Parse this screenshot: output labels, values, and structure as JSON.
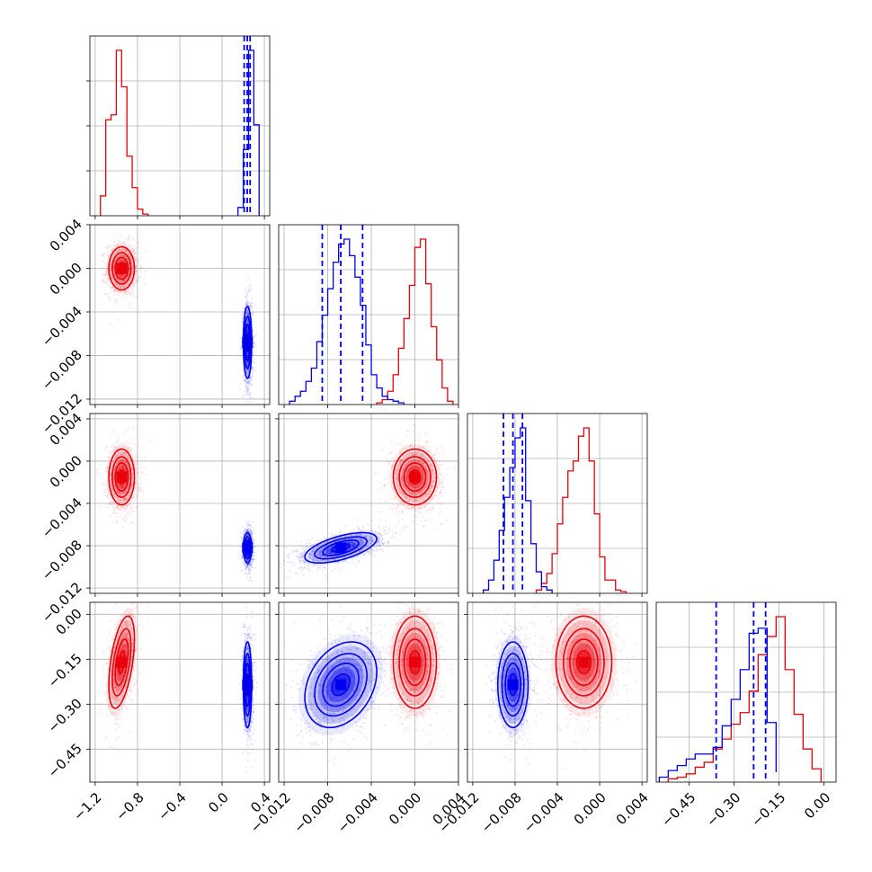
{
  "chart_data": {
    "type": "corner",
    "colors": {
      "red": "#e8000b",
      "blue": "#0000ee"
    },
    "parameters": [
      {
        "range": [
          -1.25,
          0.45
        ],
        "ticks": [
          -1.2,
          -0.8,
          -0.4,
          0.0,
          0.4
        ],
        "tick_labels": [
          "−1.2",
          "−0.8",
          "−0.4",
          "0.0",
          "0.4"
        ]
      },
      {
        "range": [
          -0.0125,
          0.004
        ],
        "ticks": [
          -0.012,
          -0.008,
          -0.004,
          0.0,
          0.004
        ],
        "tick_labels": [
          "−0.012",
          "−0.008",
          "−0.004",
          "0.000",
          "0.004"
        ]
      },
      {
        "range": [
          -0.0125,
          0.0045
        ],
        "ticks": [
          -0.012,
          -0.008,
          -0.004,
          0.0,
          0.004
        ],
        "tick_labels": [
          "−0.012",
          "−0.008",
          "−0.004",
          "0.000",
          "0.004"
        ]
      },
      {
        "range": [
          -0.56,
          0.04
        ],
        "ticks": [
          -0.45,
          -0.3,
          -0.15,
          0.0
        ],
        "tick_labels": [
          "−0.45",
          "−0.30",
          "−0.15",
          "0.00"
        ]
      }
    ],
    "red": {
      "means": [
        -0.95,
        0.0,
        -0.0015,
        -0.16
      ],
      "sds": [
        0.055,
        0.0009,
        0.0012,
        0.07
      ],
      "corr": {
        "0-3": 0.5
      },
      "hist_bins": [
        {
          "edges": [
            -1.15,
            -1.1,
            -1.05,
            -1.0,
            -0.95,
            -0.9,
            -0.85,
            -0.8,
            -0.75,
            -0.7
          ],
          "counts": [
            0.12,
            0.58,
            0.61,
            1.0,
            0.78,
            0.36,
            0.17,
            0.04,
            0.01
          ]
        },
        {
          "edges": [
            -0.0035,
            -0.003,
            -0.0025,
            -0.002,
            -0.0015,
            -0.001,
            -0.0005,
            0.0,
            0.0005,
            0.001,
            0.0015,
            0.002,
            0.0025,
            0.003,
            0.0035
          ],
          "counts": [
            0.01,
            0.03,
            0.08,
            0.18,
            0.34,
            0.52,
            0.72,
            0.95,
            1.0,
            0.73,
            0.47,
            0.27,
            0.1,
            0.02
          ]
        },
        {
          "edges": [
            -0.006,
            -0.0055,
            -0.005,
            -0.0045,
            -0.004,
            -0.0035,
            -0.003,
            -0.0025,
            -0.002,
            -0.0015,
            -0.001,
            -0.0005,
            0.0,
            0.0005,
            0.001,
            0.0015,
            0.002,
            0.0025
          ],
          "counts": [
            0.02,
            0.06,
            0.12,
            0.24,
            0.42,
            0.58,
            0.74,
            0.8,
            0.95,
            1.0,
            0.8,
            0.48,
            0.22,
            0.08,
            0.08,
            0.02,
            0.01
          ]
        },
        {
          "edges": [
            -0.52,
            -0.49,
            -0.46,
            -0.43,
            -0.4,
            -0.37,
            -0.34,
            -0.31,
            -0.28,
            -0.25,
            -0.22,
            -0.19,
            -0.16,
            -0.13,
            -0.1,
            -0.07,
            -0.04,
            -0.01
          ],
          "counts": [
            0.02,
            0.03,
            0.05,
            0.09,
            0.12,
            0.2,
            0.26,
            0.35,
            0.42,
            0.55,
            0.77,
            0.88,
            1.0,
            0.68,
            0.41,
            0.2,
            0.08
          ]
        }
      ]
    },
    "blue": {
      "means": [
        0.24,
        -0.0068,
        -0.0082,
        -0.235
      ],
      "sds": [
        0.018,
        0.0015,
        0.00065,
        0.065
      ],
      "corr": {
        "1-2": 0.6,
        "1-3": 0.3
      },
      "hist_bins": [
        {
          "edges": [
            0.15,
            0.2,
            0.25,
            0.3,
            0.35
          ],
          "counts": [
            0.05,
            0.4,
            1.0,
            0.55
          ]
        },
        {
          "edges": [
            -0.0115,
            -0.011,
            -0.0105,
            -0.01,
            -0.0095,
            -0.009,
            -0.0085,
            -0.008,
            -0.0075,
            -0.007,
            -0.0065,
            -0.006,
            -0.0055,
            -0.005,
            -0.0045,
            -0.004,
            -0.0035,
            -0.003,
            -0.0025,
            -0.002,
            -0.0015,
            -0.001
          ],
          "counts": [
            0.02,
            0.05,
            0.08,
            0.14,
            0.22,
            0.38,
            0.54,
            0.7,
            0.86,
            0.97,
            1.0,
            0.9,
            0.77,
            0.6,
            0.36,
            0.18,
            0.1,
            0.05,
            0.03,
            0.02,
            0.01
          ]
        },
        {
          "edges": [
            -0.011,
            -0.0105,
            -0.01,
            -0.0095,
            -0.009,
            -0.0085,
            -0.008,
            -0.0075,
            -0.007,
            -0.0065,
            -0.006,
            -0.0055,
            -0.005,
            -0.0045
          ],
          "counts": [
            0.02,
            0.08,
            0.2,
            0.38,
            0.58,
            0.76,
            0.94,
            1.0,
            0.56,
            0.3,
            0.13,
            0.04,
            0.02
          ]
        },
        {
          "edges": [
            -0.55,
            -0.52,
            -0.49,
            -0.46,
            -0.43,
            -0.4,
            -0.37,
            -0.34,
            -0.31,
            -0.28,
            -0.25,
            -0.22,
            -0.19,
            -0.16
          ],
          "counts": [
            0.03,
            0.07,
            0.1,
            0.14,
            0.17,
            0.17,
            0.21,
            0.34,
            0.5,
            0.68,
            0.9,
            0.93,
            0.36,
            0.06
          ]
        }
      ],
      "quantiles": [
        [
          0.209,
          0.238,
          0.265
        ],
        [
          -0.0085,
          -0.0068,
          -0.0048
        ],
        [
          -0.0091,
          -0.0082,
          -0.0073
        ],
        [
          -0.36,
          -0.235,
          -0.195
        ]
      ]
    }
  }
}
